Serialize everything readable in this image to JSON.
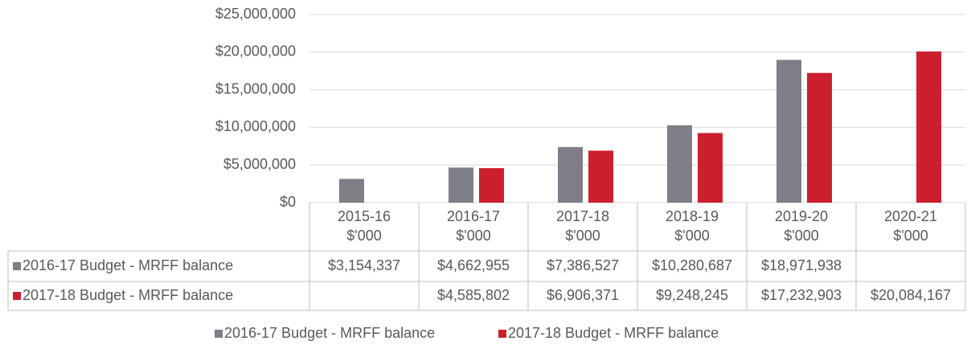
{
  "chart_data": {
    "type": "bar",
    "categories": [
      [
        "2015-16",
        "$'000"
      ],
      [
        "2016-17",
        "$'000"
      ],
      [
        "2017-18",
        "$'000"
      ],
      [
        "2018-19",
        "$'000"
      ],
      [
        "2019-20",
        "$'000"
      ],
      [
        "2020-21",
        "$'000"
      ]
    ],
    "series": [
      {
        "name": "2016-17 Budget - MRFF balance",
        "color": "#7f7d86",
        "values": [
          3154337,
          4662955,
          7386527,
          10280687,
          18971938,
          null
        ],
        "value_labels": [
          "$3,154,337",
          "$4,662,955",
          "$7,386,527",
          "$10,280,687",
          "$18,971,938",
          null
        ]
      },
      {
        "name": "2017-18 Budget - MRFF balance",
        "color": "#cc1f2e",
        "values": [
          null,
          4585802,
          6906371,
          9248245,
          17232903,
          20084167
        ],
        "value_labels": [
          null,
          "$4,585,802",
          "$6,906,371",
          "$9,248,245",
          "$17,232,903",
          "$20,084,167"
        ]
      }
    ],
    "ylim": [
      0,
      25000000
    ],
    "yticks": [
      {
        "value": 0,
        "label": "$0"
      },
      {
        "value": 5000000,
        "label": "$5,000,000"
      },
      {
        "value": 10000000,
        "label": "$10,000,000"
      },
      {
        "value": 15000000,
        "label": "$15,000,000"
      },
      {
        "value": 20000000,
        "label": "$20,000,000"
      },
      {
        "value": 25000000,
        "label": "$25,000,000"
      }
    ],
    "grid": true,
    "legend": "bottom"
  }
}
